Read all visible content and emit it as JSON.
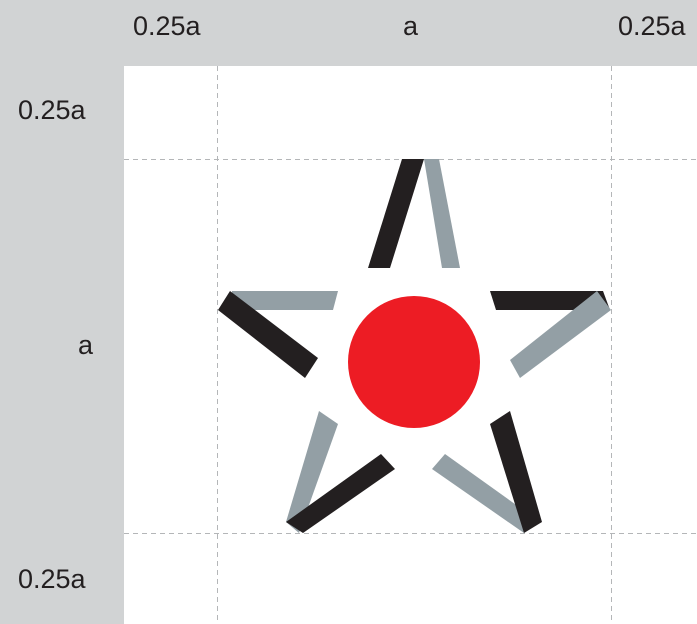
{
  "labels": {
    "top_left": "0.25a",
    "top_middle": "a",
    "top_right": "0.25a",
    "left_top": "0.25a",
    "left_middle": "a",
    "left_bottom": "0.25a"
  },
  "colors": {
    "background": "#d1d3d4",
    "panel": "#ffffff",
    "guide_lines": "#b4b6b8",
    "star_dark": "#231f20",
    "star_light": "#939fa5",
    "circle": "#ed1c24"
  }
}
